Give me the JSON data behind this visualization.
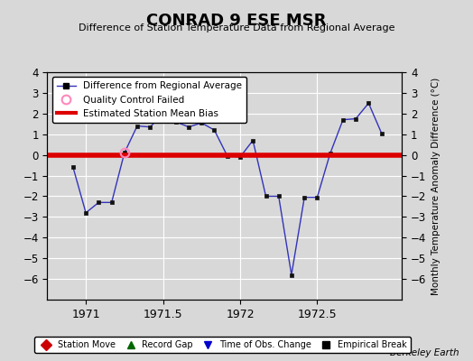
{
  "title": "CONRAD 9 ESE MSR",
  "subtitle": "Difference of Station Temperature Data from Regional Average",
  "ylabel_right": "Monthly Temperature Anomaly Difference (°C)",
  "bias_value": 0.0,
  "xlim": [
    1970.75,
    1973.05
  ],
  "ylim": [
    -7,
    4
  ],
  "yticks": [
    -6,
    -5,
    -4,
    -3,
    -2,
    -1,
    0,
    1,
    2,
    3,
    4
  ],
  "xticks": [
    1971,
    1971.5,
    1972,
    1972.5
  ],
  "background_color": "#d8d8d8",
  "plot_bg_color": "#d8d8d8",
  "line_color": "#3333bb",
  "marker_color": "#111111",
  "bias_color": "#dd0000",
  "watermark": "Berkeley Earth",
  "x_data": [
    1970.917,
    1971.0,
    1971.083,
    1971.167,
    1971.25,
    1971.333,
    1971.417,
    1971.5,
    1971.583,
    1971.667,
    1971.75,
    1971.833,
    1971.917,
    1972.0,
    1972.083,
    1972.167,
    1972.25,
    1972.333,
    1972.417,
    1972.5,
    1972.583,
    1972.667,
    1972.75,
    1972.833,
    1972.917
  ],
  "y_data": [
    -0.6,
    -2.8,
    -2.3,
    -2.3,
    0.1,
    1.4,
    1.35,
    2.0,
    1.6,
    1.35,
    1.55,
    1.2,
    -0.05,
    -0.1,
    0.7,
    -2.0,
    -2.0,
    -5.8,
    -2.05,
    -2.05,
    0.05,
    1.7,
    1.75,
    2.5,
    1.05
  ],
  "qc_fail_x": [
    1971.25
  ],
  "qc_fail_y": [
    0.1
  ]
}
